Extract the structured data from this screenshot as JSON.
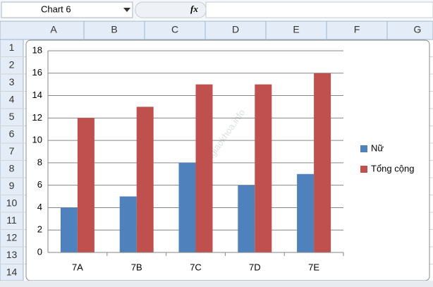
{
  "name_box": "Chart 6",
  "formula_icon": "fx",
  "columns": [
    "A",
    "B",
    "C",
    "D",
    "E",
    "F",
    "G"
  ],
  "rows": [
    "1",
    "2",
    "3",
    "4",
    "5",
    "6",
    "7",
    "8",
    "9",
    "10",
    "11",
    "12",
    "13",
    "14"
  ],
  "chart_data": {
    "type": "bar",
    "watermark": "sachgiaokhoa.info",
    "categories": [
      "7A",
      "7B",
      "7C",
      "7D",
      "7E"
    ],
    "series": [
      {
        "name": "Nữ",
        "color": "#4f81bd",
        "values": [
          4,
          5,
          8,
          6,
          7
        ]
      },
      {
        "name": "Tổng cộng",
        "color": "#c0504d",
        "values": [
          12,
          13,
          15,
          15,
          16
        ]
      }
    ],
    "ylim": [
      0,
      18
    ],
    "yticks": [
      0,
      2,
      4,
      6,
      8,
      10,
      12,
      14,
      16,
      18
    ],
    "grid": true,
    "legend": "right"
  }
}
